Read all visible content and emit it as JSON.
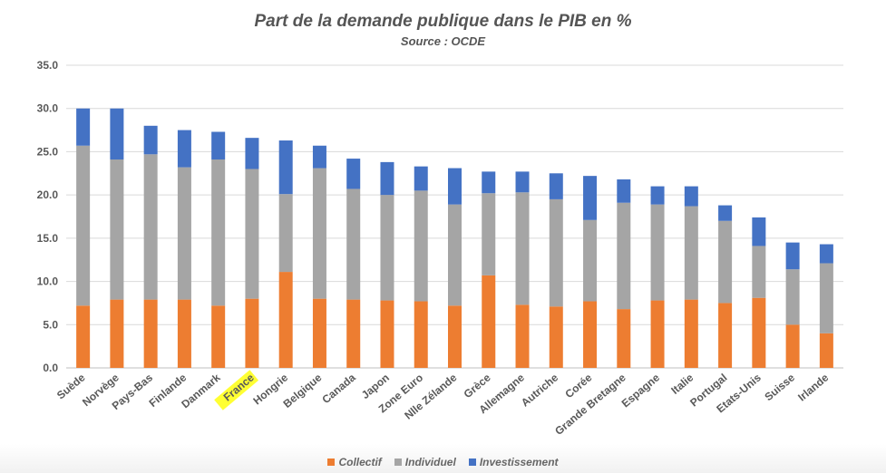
{
  "chart_data": {
    "type": "bar",
    "stacked": true,
    "title": "Part de la demande publique dans le PIB en %",
    "subtitle": "Source : OCDE",
    "categories": [
      "Suède",
      "Norvège",
      "Pays-Bas",
      "Finlande",
      "Danmark",
      "France",
      "Hongrie",
      "Belgique",
      "Canada",
      "Japon",
      "Zone Euro",
      "Nlle Zélande",
      "Grèce",
      "Allemagne",
      "Autriche",
      "Corée",
      "Grande Bretagne",
      "Espagne",
      "Italie",
      "Portugal",
      "Etats-Unis",
      "Suisse",
      "Irlande"
    ],
    "highlighted_category": "France",
    "series": [
      {
        "name": "Collectif",
        "color": "#ED7D31",
        "values": [
          7.2,
          7.9,
          7.9,
          7.9,
          7.2,
          8.0,
          11.1,
          8.0,
          7.9,
          7.8,
          7.7,
          7.2,
          10.7,
          7.3,
          7.1,
          7.7,
          6.8,
          7.8,
          7.9,
          7.5,
          8.1,
          5.0,
          4.0
        ]
      },
      {
        "name": "Individuel",
        "color": "#A5A5A5",
        "values": [
          18.5,
          16.2,
          16.8,
          15.3,
          16.9,
          15.0,
          9.0,
          15.1,
          12.8,
          12.2,
          12.8,
          11.7,
          9.5,
          13.0,
          12.4,
          9.4,
          12.3,
          11.1,
          10.8,
          9.5,
          6.0,
          6.4,
          8.1
        ]
      },
      {
        "name": "Investissement",
        "color": "#4472C4",
        "values": [
          4.3,
          5.9,
          3.3,
          4.3,
          3.2,
          3.6,
          6.2,
          2.6,
          3.5,
          3.8,
          2.8,
          4.2,
          2.5,
          2.4,
          3.0,
          5.1,
          2.7,
          2.1,
          2.3,
          1.8,
          3.3,
          3.1,
          2.2
        ]
      }
    ],
    "yticks": [
      "35.0",
      "30.0",
      "25.0",
      "20.0",
      "15.0",
      "10.0",
      "5.0",
      "0.0"
    ],
    "ylim": [
      0,
      35
    ],
    "grid": true,
    "legend_position": "bottom"
  }
}
